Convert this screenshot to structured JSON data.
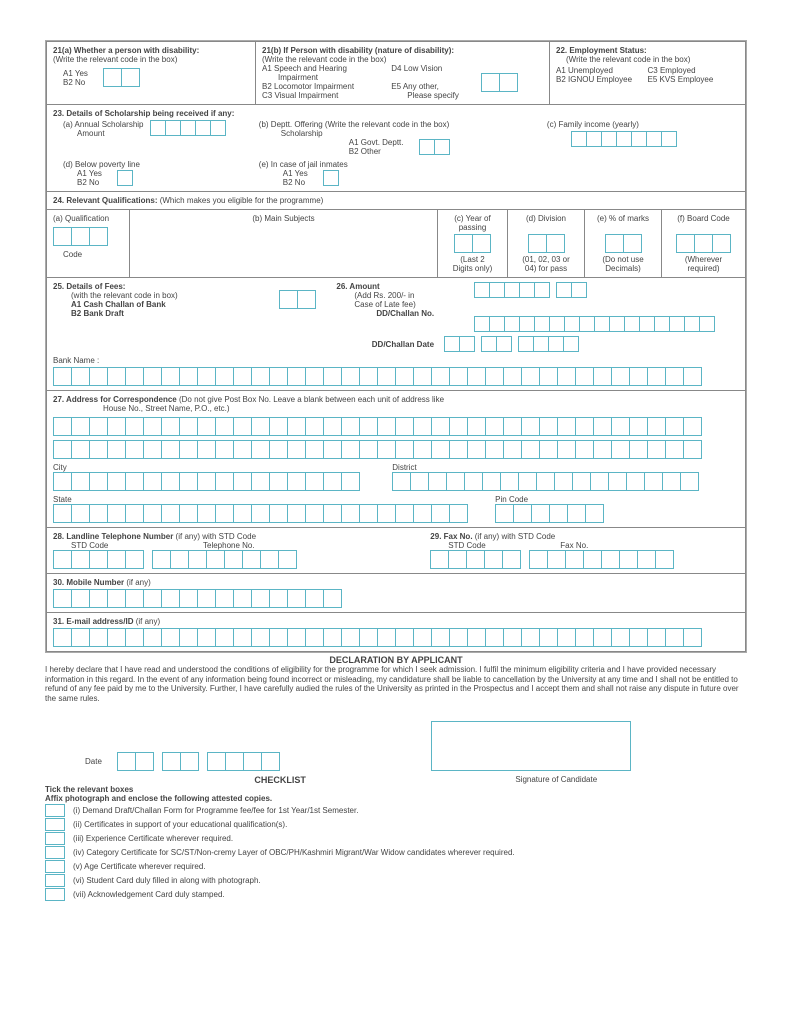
{
  "q21a": {
    "title": "21(a)  Whether a person with disability:",
    "sub": "(Write the relevant code in the box)",
    "a1": "A1 Yes",
    "b2": "B2 No"
  },
  "q21b": {
    "title": "21(b)  If Person with disability (nature of disability):",
    "sub": "(Write the relevant code in the box)",
    "a1": "A1  Speech and Hearing",
    "a1b": "Impairment",
    "b2": "B2  Locomotor Impairment",
    "c3": "C3  Visual Impairment",
    "d4": "D4  Low Vision",
    "e5": "E5  Any other,",
    "e5b": "Please specify"
  },
  "q22": {
    "title": "22.   Employment Status:",
    "sub": "(Write the relevant code in the box)",
    "a1": "A1 Unemployed",
    "b2": "B2 IGNOU Employee",
    "c3": "C3  Employed",
    "e5": "E5  KVS Employee"
  },
  "q23": {
    "title": "23.  Details of Scholarship being received if any:",
    "a": "(a) Annual Scholarship",
    "a2": "Amount",
    "b": "(b)    Deptt. Offering (Write the relevant code in the box)",
    "b2": "Scholarship",
    "b3": "A1   Govt. Deptt.",
    "b4": "B2   Other",
    "c": "(c)     Family income (yearly)",
    "d": "(d)   Below poverty line",
    "d1": "A1 Yes",
    "d2": "B2 No",
    "e": "(e)    In case of jail inmates",
    "e1": "A1 Yes",
    "e2": "B2 No"
  },
  "q24": {
    "title": "24.  Relevant Qualifications:",
    "sub": " (Which makes you eligible for the programme)",
    "a": "(a) Qualification",
    "code": "Code",
    "b": "(b) Main Subjects",
    "c": "(c) Year of",
    "c2": "passing",
    "c3": "(Last 2",
    "c4": "Digits only)",
    "d": "(d) Division",
    "d3": "(01, 02, 03 or",
    "d4": "04) for pass",
    "e": "(e) % of marks",
    "e3": "(Do not use",
    "e4": "Decimals)",
    "f": "(f) Board Code",
    "f3": "(Wherever",
    "f4": "required)"
  },
  "q25": {
    "title": "25.  Details of Fees:",
    "sub": "(with the relevant code in box)",
    "a1": "A1 Cash Challan of Bank",
    "b2": "B2 Bank Draft"
  },
  "q26": {
    "title": "26.  Amount",
    "sub": "(Add Rs. 200/- in",
    "sub2": "Case of Late fee)",
    "dd": "DD/Challan No.",
    "date": "DD/Challan Date"
  },
  "bank": "Bank Name :",
  "q27": {
    "title": "27.  Address for Correspondence ",
    "sub": "(Do not give Post Box No. Leave a blank between each unit of address like",
    "sub2": "House No., Street Name, P.O., etc.)",
    "city": "City",
    "district": "District",
    "state": "State",
    "pin": "Pin Code"
  },
  "q28": {
    "title": "28.  Landline Telephone Number",
    "sub": " (if any) with STD Code",
    "std": "STD Code",
    "tel": "Telephone No."
  },
  "q29": {
    "title": "29. Fax No.",
    "sub": " (if any) with STD Code",
    "std": "STD Code",
    "fax": "Fax No."
  },
  "q30": "30.  Mobile Number",
  "q30s": " (if any)",
  "q31": "31.  E-mail address/ID",
  "q31s": " (if any)",
  "decl": {
    "title": "DECLARATION BY APPLICANT",
    "text": "I hereby declare that I have read and understood the conditions of eligibility for the programme for which I seek admission. I fulfil the minimum eligibility criteria and I have provided necessary information in this regard. In the event of any information being found incorrect or misleading, my candidature shall be liable to cancellation by the University at any time and I shall not be entitled to refund of any fee paid by me to the University. Further, I have carefully audied the rules of the University as printed in the Prospectus and I accept them and shall not raise any dispute in future over the same rules.",
    "date": "Date",
    "sig": "Signature of Candidate"
  },
  "check": {
    "title": "CHECKLIST",
    "tick": "Tick the relevant boxes",
    "affix": "Affix photograph and enclose the following attested copies.",
    "i": "(i)     Demand Draft/Challan Form for Programme fee/fee for 1st Year/1st Semester.",
    "ii": "(ii)    Certificates in support of your educational qualification(s).",
    "iii": "(iii)   Experience Certificate wherever required.",
    "iv": "(iv)   Category Certificate for SC/ST/Non-cremy Layer of OBC/PH/Kashmiri Migrant/War Widow candidates wherever required.",
    "v": "(v)    Age Certificate wherever required.",
    "vi": "(vi)   Student Card duly filled in along with photograph.",
    "vii": "(vii)  Acknowledgement Card duly stamped."
  }
}
